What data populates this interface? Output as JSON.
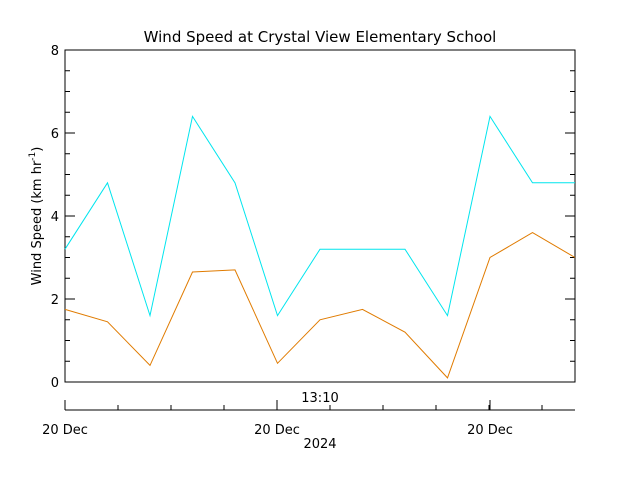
{
  "chart_data": {
    "type": "line",
    "title": "Wind Speed at Crystal View Elementary School",
    "ylabel": "Wind Speed (km hr",
    "ylabel_sup": "-1",
    "ylabel_close": ")",
    "ylim": [
      0,
      8
    ],
    "y_ticks": [
      0,
      2,
      4,
      6,
      8
    ],
    "x_tick_labels": [
      "20 Dec",
      "20 Dec",
      "20 Dec"
    ],
    "x_inner_label": "13:10",
    "x_year_label": "2024",
    "x": [
      0,
      1,
      2,
      3,
      4,
      5,
      6,
      7,
      8,
      9,
      10,
      11,
      12
    ],
    "series": [
      {
        "color": "#00e5ee",
        "values": [
          3.2,
          4.8,
          1.6,
          6.4,
          4.8,
          1.6,
          3.2,
          3.2,
          3.2,
          1.6,
          6.4,
          4.8,
          4.8
        ]
      },
      {
        "color": "#e07b00",
        "values": [
          1.75,
          1.45,
          0.4,
          2.65,
          2.7,
          0.45,
          1.5,
          1.75,
          1.2,
          0.1,
          3.0,
          3.6,
          3.0
        ]
      }
    ]
  }
}
